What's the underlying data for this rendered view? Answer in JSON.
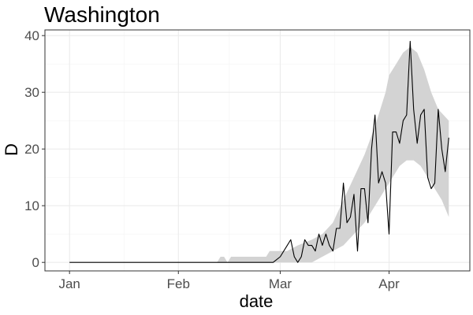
{
  "chart_data": {
    "type": "line",
    "title": "Washington",
    "xlabel": "date",
    "ylabel": "D",
    "x_ticks": [
      {
        "date": "2020-01-01",
        "label": "Jan"
      },
      {
        "date": "2020-02-01",
        "label": "Feb"
      },
      {
        "date": "2020-03-01",
        "label": "Mar"
      },
      {
        "date": "2020-04-01",
        "label": "Apr"
      }
    ],
    "y_ticks": [
      0,
      10,
      20,
      30,
      40
    ],
    "xlim": [
      "2019-12-25",
      "2020-04-24"
    ],
    "ylim": [
      -1.5,
      41
    ],
    "grid": true,
    "colors": {
      "line": "#000000",
      "band": "#d3d3d3",
      "grid_major": "#ebebeb",
      "grid_minor": "#f3f3f3",
      "border": "#333333"
    },
    "series": [
      {
        "values": [
          [
            "2020-01-01",
            0
          ],
          [
            "2020-02-28",
            0
          ],
          [
            "2020-03-01",
            1
          ],
          [
            "2020-03-03",
            3
          ],
          [
            "2020-03-04",
            4
          ],
          [
            "2020-03-05",
            1
          ],
          [
            "2020-03-06",
            0
          ],
          [
            "2020-03-07",
            1
          ],
          [
            "2020-03-08",
            4
          ],
          [
            "2020-03-09",
            3
          ],
          [
            "2020-03-10",
            3
          ],
          [
            "2020-03-11",
            2
          ],
          [
            "2020-03-12",
            5
          ],
          [
            "2020-03-13",
            3
          ],
          [
            "2020-03-14",
            5
          ],
          [
            "2020-03-15",
            3
          ],
          [
            "2020-03-16",
            2
          ],
          [
            "2020-03-17",
            6
          ],
          [
            "2020-03-18",
            6
          ],
          [
            "2020-03-19",
            14
          ],
          [
            "2020-03-20",
            7
          ],
          [
            "2020-03-21",
            8
          ],
          [
            "2020-03-22",
            12
          ],
          [
            "2020-03-23",
            2
          ],
          [
            "2020-03-24",
            13
          ],
          [
            "2020-03-25",
            13
          ],
          [
            "2020-03-26",
            7
          ],
          [
            "2020-03-27",
            20
          ],
          [
            "2020-03-28",
            26
          ],
          [
            "2020-03-29",
            14
          ],
          [
            "2020-03-30",
            16
          ],
          [
            "2020-03-31",
            14
          ],
          [
            "2020-04-01",
            5
          ],
          [
            "2020-04-02",
            23
          ],
          [
            "2020-04-03",
            23
          ],
          [
            "2020-04-04",
            21
          ],
          [
            "2020-04-05",
            25
          ],
          [
            "2020-04-06",
            26
          ],
          [
            "2020-04-07",
            39
          ],
          [
            "2020-04-08",
            27
          ],
          [
            "2020-04-09",
            21
          ],
          [
            "2020-04-10",
            26
          ],
          [
            "2020-04-11",
            27
          ],
          [
            "2020-04-12",
            15
          ],
          [
            "2020-04-13",
            13
          ],
          [
            "2020-04-14",
            14
          ],
          [
            "2020-04-15",
            27
          ],
          [
            "2020-04-16",
            20
          ],
          [
            "2020-04-17",
            16
          ],
          [
            "2020-04-18",
            22
          ]
        ]
      }
    ],
    "band": {
      "upper": [
        [
          "2020-02-12",
          0
        ],
        [
          "2020-02-13",
          1
        ],
        [
          "2020-02-14",
          1
        ],
        [
          "2020-02-15",
          0
        ],
        [
          "2020-02-16",
          1
        ],
        [
          "2020-02-26",
          1
        ],
        [
          "2020-02-27",
          2
        ],
        [
          "2020-03-03",
          2
        ],
        [
          "2020-03-06",
          3
        ],
        [
          "2020-03-10",
          4
        ],
        [
          "2020-03-13",
          5
        ],
        [
          "2020-03-16",
          7
        ],
        [
          "2020-03-19",
          11
        ],
        [
          "2020-03-22",
          15
        ],
        [
          "2020-03-25",
          19
        ],
        [
          "2020-03-28",
          24
        ],
        [
          "2020-03-31",
          30
        ],
        [
          "2020-04-01",
          33
        ],
        [
          "2020-04-03",
          35
        ],
        [
          "2020-04-05",
          37
        ],
        [
          "2020-04-07",
          38
        ],
        [
          "2020-04-09",
          37
        ],
        [
          "2020-04-11",
          34
        ],
        [
          "2020-04-13",
          30
        ],
        [
          "2020-04-15",
          27
        ],
        [
          "2020-04-18",
          25
        ]
      ],
      "lower": [
        [
          "2020-02-12",
          0
        ],
        [
          "2020-03-10",
          0
        ],
        [
          "2020-03-13",
          1
        ],
        [
          "2020-03-16",
          2
        ],
        [
          "2020-03-19",
          3
        ],
        [
          "2020-03-22",
          5
        ],
        [
          "2020-03-25",
          7
        ],
        [
          "2020-03-28",
          10
        ],
        [
          "2020-03-31",
          13
        ],
        [
          "2020-04-02",
          15
        ],
        [
          "2020-04-04",
          17
        ],
        [
          "2020-04-06",
          18
        ],
        [
          "2020-04-08",
          18
        ],
        [
          "2020-04-10",
          17
        ],
        [
          "2020-04-12",
          15
        ],
        [
          "2020-04-14",
          13
        ],
        [
          "2020-04-16",
          11
        ],
        [
          "2020-04-18",
          8
        ]
      ]
    }
  }
}
